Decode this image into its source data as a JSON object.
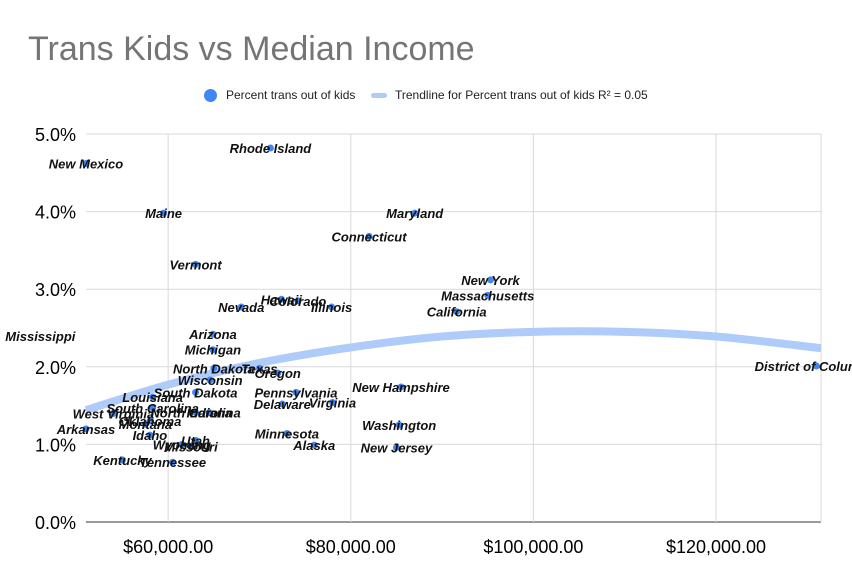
{
  "title": "Trans Kids vs Median Income",
  "legend": {
    "points_label": "Percent trans out of kids",
    "trend_label": "Trendline for Percent trans out of kids R² = 0.05"
  },
  "colors": {
    "point": "#4285f4",
    "trend": "#aecbfa",
    "grid": "#d9d9d9",
    "axis_text": "#000000",
    "title": "#757575"
  },
  "chart_data": {
    "type": "scatter",
    "title": "Trans Kids vs Median Income",
    "xlabel": "",
    "ylabel": "",
    "xlim": [
      51000,
      131500
    ],
    "ylim": [
      0,
      5
    ],
    "x_ticks": [
      60000,
      80000,
      100000,
      120000
    ],
    "x_tick_labels": [
      "$60,000.00",
      "$80,000.00",
      "$100,000.00",
      "$120,000.00"
    ],
    "y_ticks": [
      0,
      1,
      2,
      3,
      4,
      5
    ],
    "y_tick_labels": [
      "0.0%",
      "1.0%",
      "2.0%",
      "3.0%",
      "4.0%",
      "5.0%"
    ],
    "grid": true,
    "legend_position": "top",
    "series": [
      {
        "name": "Percent trans out of kids",
        "points": [
          {
            "label": "Rhode Island",
            "x": 71200,
            "y": 4.82
          },
          {
            "label": "New Mexico",
            "x": 51000,
            "y": 4.62
          },
          {
            "label": "Maine",
            "x": 59500,
            "y": 3.98
          },
          {
            "label": "Maryland",
            "x": 87000,
            "y": 3.98
          },
          {
            "label": "Connecticut",
            "x": 82000,
            "y": 3.68
          },
          {
            "label": "Vermont",
            "x": 63000,
            "y": 3.32
          },
          {
            "label": "New York",
            "x": 95300,
            "y": 3.12
          },
          {
            "label": "Massachusetts",
            "x": 95000,
            "y": 2.92
          },
          {
            "label": "California",
            "x": 91600,
            "y": 2.71
          },
          {
            "label": "Nevada",
            "x": 68000,
            "y": 2.77
          },
          {
            "label": "Hawaii",
            "x": 72400,
            "y": 2.87
          },
          {
            "label": "Colorado",
            "x": 74200,
            "y": 2.85
          },
          {
            "label": "Illinois",
            "x": 77900,
            "y": 2.77
          },
          {
            "label": "Mississippi",
            "x": 46000,
            "y": 2.4
          },
          {
            "label": "Arizona",
            "x": 64900,
            "y": 2.42
          },
          {
            "label": "Michigan",
            "x": 64900,
            "y": 2.22
          },
          {
            "label": "North Dakota",
            "x": 65000,
            "y": 1.98
          },
          {
            "label": "Texas",
            "x": 70000,
            "y": 1.98
          },
          {
            "label": "Oregon",
            "x": 72000,
            "y": 1.92
          },
          {
            "label": "Wisconsin",
            "x": 64600,
            "y": 1.83
          },
          {
            "label": "New Hampshire",
            "x": 85500,
            "y": 1.74
          },
          {
            "label": "South Dakota",
            "x": 63000,
            "y": 1.67
          },
          {
            "label": "Pennsylvania",
            "x": 74000,
            "y": 1.67
          },
          {
            "label": "Louisiana",
            "x": 58300,
            "y": 1.61
          },
          {
            "label": "Delaware",
            "x": 72500,
            "y": 1.52
          },
          {
            "label": "Virginia",
            "x": 78000,
            "y": 1.54
          },
          {
            "label": "South Carolina",
            "x": 58300,
            "y": 1.47
          },
          {
            "label": "North Carolina",
            "x": 63000,
            "y": 1.41
          },
          {
            "label": "Indiana",
            "x": 64500,
            "y": 1.41
          },
          {
            "label": "West Virginia",
            "x": 54000,
            "y": 1.4
          },
          {
            "label": "Oklahoma",
            "x": 58000,
            "y": 1.3
          },
          {
            "label": "Montana",
            "x": 57500,
            "y": 1.26
          },
          {
            "label": "Washington",
            "x": 85300,
            "y": 1.25
          },
          {
            "label": "Arkansas",
            "x": 51000,
            "y": 1.2
          },
          {
            "label": "Minnesota",
            "x": 73000,
            "y": 1.14
          },
          {
            "label": "Idaho",
            "x": 58000,
            "y": 1.12
          },
          {
            "label": "Utah",
            "x": 63000,
            "y": 1.05
          },
          {
            "label": "Alaska",
            "x": 76000,
            "y": 0.99
          },
          {
            "label": "Wyoming",
            "x": 61500,
            "y": 1.0
          },
          {
            "label": "Missouri",
            "x": 62500,
            "y": 0.97
          },
          {
            "label": "New Jersey",
            "x": 85000,
            "y": 0.96
          },
          {
            "label": "Kentucky",
            "x": 55000,
            "y": 0.8
          },
          {
            "label": "Tennessee",
            "x": 60500,
            "y": 0.77
          },
          {
            "label": "District of Columbia",
            "x": 131000,
            "y": 2.01
          }
        ]
      }
    ],
    "trendline": {
      "name": "Trendline for Percent trans out of kids R² = 0.05",
      "points": [
        {
          "x": 51000,
          "y": 1.44
        },
        {
          "x": 60000,
          "y": 1.77
        },
        {
          "x": 70000,
          "y": 2.05
        },
        {
          "x": 80000,
          "y": 2.25
        },
        {
          "x": 90000,
          "y": 2.39
        },
        {
          "x": 100000,
          "y": 2.45
        },
        {
          "x": 110000,
          "y": 2.45
        },
        {
          "x": 120000,
          "y": 2.39
        },
        {
          "x": 131500,
          "y": 2.24
        }
      ]
    }
  }
}
